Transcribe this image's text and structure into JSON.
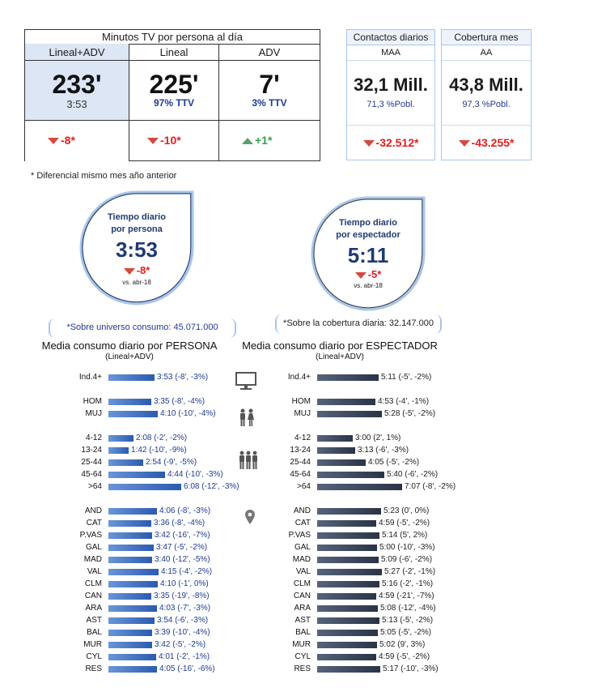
{
  "top_table": {
    "title": "Minutos TV por persona al día",
    "columns": [
      {
        "header": "Lineal+ADV",
        "big": "233'",
        "sub": "3:53",
        "delta": "-8*",
        "dir": "down"
      },
      {
        "header": "Lineal",
        "big": "225'",
        "sub": "97% TTV",
        "delta": "-10*",
        "dir": "down"
      },
      {
        "header": "ADV",
        "big": "7'",
        "sub": "3% TTV",
        "delta": "+1*",
        "dir": "up"
      }
    ]
  },
  "contactos": {
    "header": "Contactos diarios",
    "sub": "MAA",
    "big": "32,1 Mill.",
    "pct": "71,3 %Pobl.",
    "delta": "-32.512*"
  },
  "cobertura": {
    "header": "Cobertura mes",
    "sub": "AA",
    "big": "43,8 Mill.",
    "pct": "97,3 %Pobl.",
    "delta": "-43.255*"
  },
  "footnote": "* Diferencial mismo mes año anterior",
  "drop_persona": {
    "line1": "Tiempo diario",
    "line2": "por persona",
    "value": "3:53",
    "delta": "-8*",
    "period": "vs. abr-18"
  },
  "drop_espectador": {
    "line1": "Tiempo diario",
    "line2": "por espectador",
    "value": "5:11",
    "delta": "-5*",
    "period": "vs. abr-18"
  },
  "universe_persona": "*Sobre universo consumo: 45.071.000",
  "universe_espectador": "*Sobre la cobertura diaria: 32.147.000",
  "colors": {
    "persona": "#2b5bb0",
    "espectador": "#2a3446",
    "red": "#d9473e",
    "green": "#5aa06b"
  },
  "chart_data": [
    {
      "type": "bar",
      "title": "Media consumo diario por PERSONA",
      "subtitle": "(Lineal+ADV)",
      "categories": [
        "Ind.4+",
        "HOM",
        "MUJ",
        "4-12",
        "13-24",
        "25-44",
        "45-64",
        ">64",
        "AND",
        "CAT",
        "P.VAS",
        "GAL",
        "MAD",
        "VAL",
        "CLM",
        "CAN",
        "ARA",
        "AST",
        "BAL",
        "MUR",
        "CYL",
        "RES"
      ],
      "values": [
        233,
        215,
        250,
        128,
        102,
        174,
        284,
        368,
        246,
        216,
        222,
        227,
        220,
        255,
        250,
        215,
        243,
        234,
        219,
        222,
        241,
        245
      ],
      "labels": [
        "3:53 (-8', -3%)",
        "3:35 (-8', -4%)",
        "4:10 (-10', -4%)",
        "2:08 (-2', -2%)",
        "1:42 (-10', -9%)",
        "2:54 (-9', -5%)",
        "4:44 (-10', -3%)",
        "6:08 (-12', -3%)",
        "4:06 (-8', -3%)",
        "3:36 (-8', -4%)",
        "3:42 (-16', -7%)",
        "3:47 (-5', -2%)",
        "3:40 (-12', -5%)",
        "4:15 (-4', -2%)",
        "4:10 (-1', 0%)",
        "3:35 (-19', -8%)",
        "4:03 (-7', -3%)",
        "3:54 (-6', -3%)",
        "3:39 (-10', -4%)",
        "3:42 (-5', -2%)",
        "4:01 (-2', -1%)",
        "4:05 (-16', -6%)"
      ],
      "unit": "minutes"
    },
    {
      "type": "bar",
      "title": "Media consumo diario por ESPECTADOR",
      "subtitle": "(Lineal+ADV)",
      "categories": [
        "Ind.4+",
        "HOM",
        "MUJ",
        "4-12",
        "13-24",
        "25-44",
        "45-64",
        ">64",
        "AND",
        "CAT",
        "P.VAS",
        "GAL",
        "MAD",
        "VAL",
        "CLM",
        "CAN",
        "ARA",
        "AST",
        "BAL",
        "MUR",
        "CYL",
        "RES"
      ],
      "values": [
        311,
        293,
        328,
        180,
        193,
        245,
        340,
        427,
        323,
        299,
        314,
        300,
        309,
        327,
        316,
        299,
        308,
        313,
        305,
        302,
        299,
        317
      ],
      "labels": [
        "5:11 (-5', -2%)",
        "4:53 (-4', -1%)",
        "5:28 (-5', -2%)",
        "3:00 (2', 1%)",
        "3:13 (-6', -3%)",
        "4:05 (-5', -2%)",
        "5:40 (-6', -2%)",
        "7:07 (-8', -2%)",
        "5:23 (0', 0%)",
        "4:59 (-5', -2%)",
        "5:14 (5', 2%)",
        "5:00 (-10', -3%)",
        "5:09 (-6', -2%)",
        "5:27 (-2', -1%)",
        "5:16 (-2', -1%)",
        "4:59 (-21', -7%)",
        "5:08 (-12', -4%)",
        "5:13 (-5', -2%)",
        "5:05 (-5', -2%)",
        "5:02 (9', 3%)",
        "4:59 (-5', -2%)",
        "5:17 (-10', -3%)"
      ],
      "unit": "minutes"
    }
  ]
}
